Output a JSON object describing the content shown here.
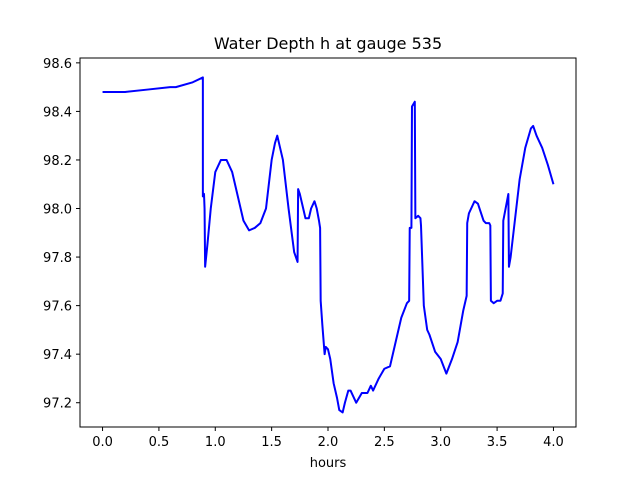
{
  "chart_data": {
    "type": "line",
    "title": "Water Depth h at gauge 535",
    "xlabel": "hours",
    "ylabel": "",
    "xlim": [
      -0.2,
      4.2
    ],
    "ylim": [
      97.1,
      98.62
    ],
    "xticks": [
      0.0,
      0.5,
      1.0,
      1.5,
      2.0,
      2.5,
      3.0,
      3.5,
      4.0
    ],
    "xtick_labels": [
      "0.0",
      "0.5",
      "1.0",
      "1.5",
      "2.0",
      "2.5",
      "3.0",
      "3.5",
      "4.0"
    ],
    "yticks": [
      97.2,
      97.4,
      97.6,
      97.8,
      98.0,
      98.2,
      98.4,
      98.6
    ],
    "ytick_labels": [
      "97.2",
      "97.4",
      "97.6",
      "97.8",
      "98.0",
      "98.2",
      "98.4",
      "98.6"
    ],
    "grid": false,
    "series": [
      {
        "color": "#0000ff",
        "x": [
          0.0,
          0.2,
          0.4,
          0.6,
          0.65,
          0.8,
          0.89,
          0.89,
          0.9,
          0.905,
          0.91,
          0.93,
          0.96,
          1.0,
          1.05,
          1.1,
          1.15,
          1.2,
          1.25,
          1.3,
          1.35,
          1.4,
          1.45,
          1.5,
          1.53,
          1.55,
          1.6,
          1.65,
          1.7,
          1.73,
          1.735,
          1.75,
          1.78,
          1.8,
          1.83,
          1.85,
          1.88,
          1.9,
          1.92,
          1.93,
          1.935,
          1.95,
          1.97,
          1.98,
          2.0,
          2.02,
          2.05,
          2.08,
          2.1,
          2.13,
          2.15,
          2.18,
          2.2,
          2.25,
          2.3,
          2.35,
          2.38,
          2.4,
          2.45,
          2.5,
          2.55,
          2.6,
          2.65,
          2.7,
          2.72,
          2.725,
          2.74,
          2.745,
          2.77,
          2.775,
          2.8,
          2.82,
          2.825,
          2.85,
          2.88,
          2.9,
          2.95,
          3.0,
          3.05,
          3.1,
          3.15,
          3.2,
          3.23,
          3.235,
          3.25,
          3.3,
          3.33,
          3.38,
          3.4,
          3.43,
          3.44,
          3.445,
          3.47,
          3.5,
          3.53,
          3.55,
          3.555,
          3.6,
          3.605,
          3.62,
          3.65,
          3.7,
          3.75,
          3.8,
          3.82,
          3.85,
          3.87,
          3.9,
          3.95,
          4.0
        ],
        "y": [
          98.48,
          98.48,
          98.49,
          98.5,
          98.5,
          98.52,
          98.54,
          98.05,
          98.06,
          98.0,
          97.76,
          97.85,
          98.0,
          98.15,
          98.2,
          98.2,
          98.15,
          98.05,
          97.95,
          97.91,
          97.92,
          97.94,
          98.0,
          98.2,
          98.27,
          98.3,
          98.2,
          98.0,
          97.82,
          97.78,
          98.08,
          98.06,
          98.0,
          97.96,
          97.96,
          98.0,
          98.03,
          98.0,
          97.95,
          97.92,
          97.62,
          97.52,
          97.4,
          97.43,
          97.42,
          97.38,
          97.28,
          97.22,
          97.17,
          97.16,
          97.2,
          97.25,
          97.25,
          97.2,
          97.24,
          97.24,
          97.27,
          97.25,
          97.3,
          97.34,
          97.35,
          97.45,
          97.55,
          97.61,
          97.62,
          97.92,
          97.92,
          98.42,
          98.44,
          97.96,
          97.97,
          97.96,
          97.93,
          97.6,
          97.5,
          97.48,
          97.41,
          97.38,
          97.32,
          97.38,
          97.45,
          97.58,
          97.64,
          97.94,
          97.98,
          98.03,
          98.02,
          97.95,
          97.94,
          97.94,
          97.93,
          97.62,
          97.61,
          97.62,
          97.62,
          97.65,
          97.95,
          98.06,
          97.76,
          97.8,
          97.92,
          98.12,
          98.25,
          98.33,
          98.34,
          98.3,
          98.28,
          98.25,
          98.18,
          98.1
        ]
      }
    ]
  }
}
